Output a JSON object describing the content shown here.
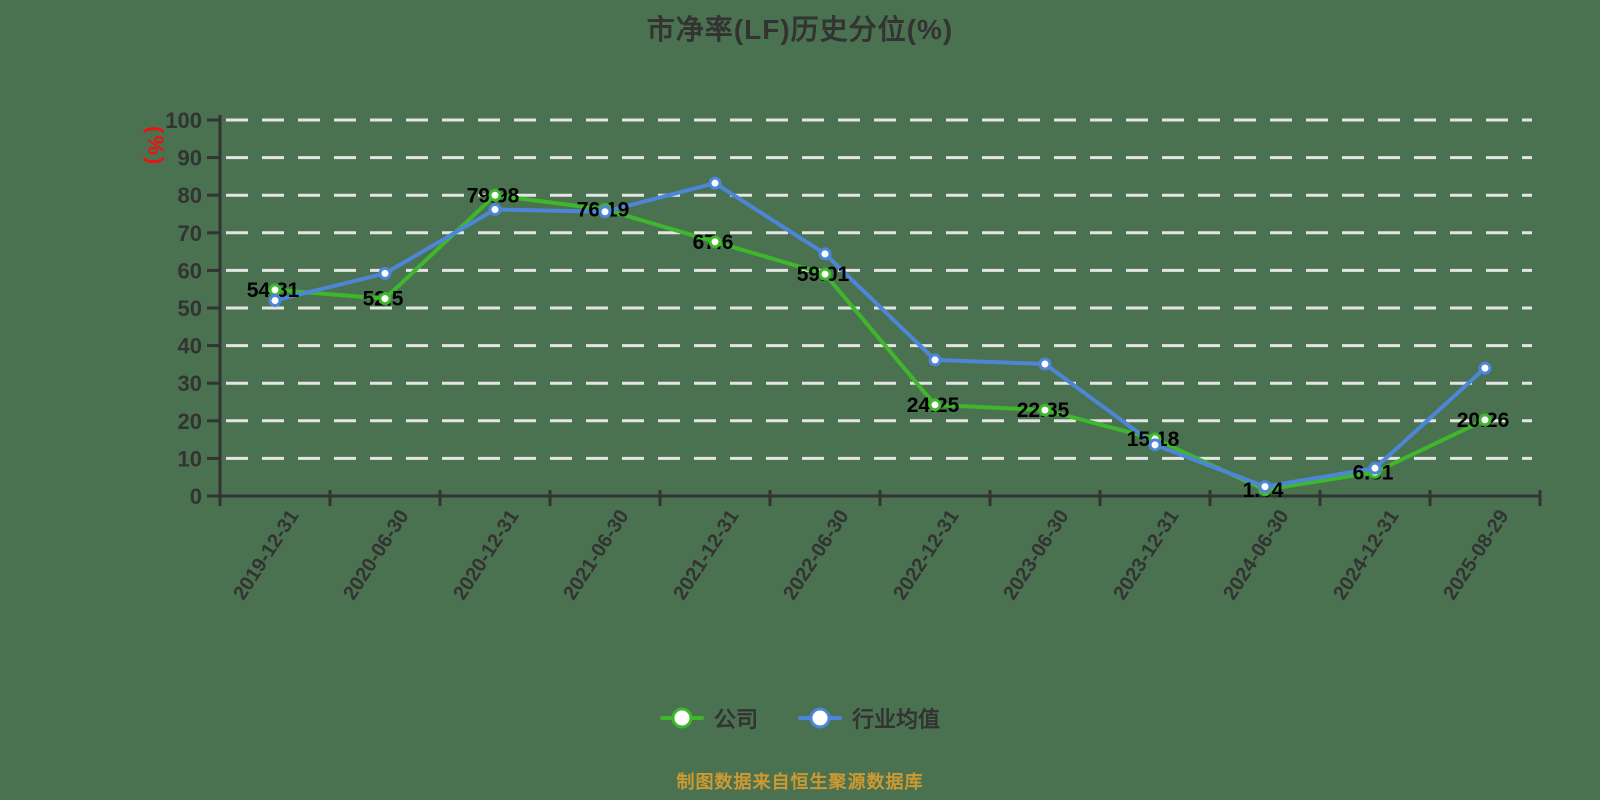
{
  "title": "市净率(LF)历史分位(%)",
  "y_axis_label": "(%)",
  "footer": "制图数据来自恒生聚源数据库",
  "legend": [
    {
      "label": "公司"
    },
    {
      "label": "行业均值"
    }
  ],
  "colors": {
    "background": "#4a7250",
    "axis": "#333333",
    "grid": "#e4e4e4",
    "title": "#333333",
    "data_label": "#000000",
    "y_unit_red": "#ee1111",
    "footer_orange": "#cc9933",
    "company_green": "#3eb72d",
    "industry_blue": "#4d86d9",
    "marker_fill": "#ffffff"
  },
  "chart_data": {
    "type": "line",
    "title": "市净率(LF)历史分位(%)",
    "xlabel": "",
    "ylabel": "(%)",
    "categories": [
      "2019-12-31",
      "2020-06-30",
      "2020-12-31",
      "2021-06-30",
      "2021-12-31",
      "2022-06-30",
      "2022-12-31",
      "2023-06-30",
      "2023-12-31",
      "2024-06-30",
      "2024-12-31",
      "2025-08-29"
    ],
    "series": [
      {
        "name": "公司",
        "name_en": "company",
        "color": "#3eb72d",
        "labels_shown": true,
        "values": [
          54.81,
          52.5,
          79.98,
          76.19,
          67.6,
          59.01,
          24.25,
          22.85,
          15.18,
          1.64,
          6.31,
          20.26
        ]
      },
      {
        "name": "行业均值",
        "name_en": "industry-average",
        "color": "#4d86d9",
        "labels_shown": false,
        "values": [
          52,
          59.2,
          76.2,
          75.6,
          83.2,
          64.4,
          36.2,
          35.1,
          13.6,
          2.5,
          7.4,
          34
        ]
      }
    ],
    "ylim": [
      0,
      100
    ],
    "y_ticks": [
      0,
      10,
      20,
      30,
      40,
      50,
      60,
      70,
      80,
      90,
      100
    ],
    "grid": "horizontal-dashed",
    "legend_position": "bottom"
  }
}
